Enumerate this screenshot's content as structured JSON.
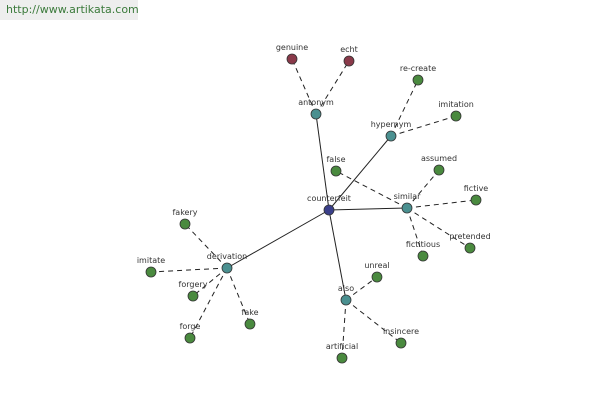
{
  "watermark": "http://www.artikata.com",
  "nodes": [
    {
      "label": "counterfeit"
    },
    {
      "label": "antonym"
    },
    {
      "label": "genuine"
    },
    {
      "label": "echt"
    },
    {
      "label": "hypernym"
    },
    {
      "label": "re-create"
    },
    {
      "label": "imitation"
    },
    {
      "label": "similar"
    },
    {
      "label": "false"
    },
    {
      "label": "assumed"
    },
    {
      "label": "fictive"
    },
    {
      "label": "pretended"
    },
    {
      "label": "fictitious"
    },
    {
      "label": "derivation"
    },
    {
      "label": "fakery"
    },
    {
      "label": "imitate"
    },
    {
      "label": "forgery"
    },
    {
      "label": "forge"
    },
    {
      "label": "fake"
    },
    {
      "label": "also"
    },
    {
      "label": "unreal"
    },
    {
      "label": "insincere"
    },
    {
      "label": "artificial"
    }
  ]
}
